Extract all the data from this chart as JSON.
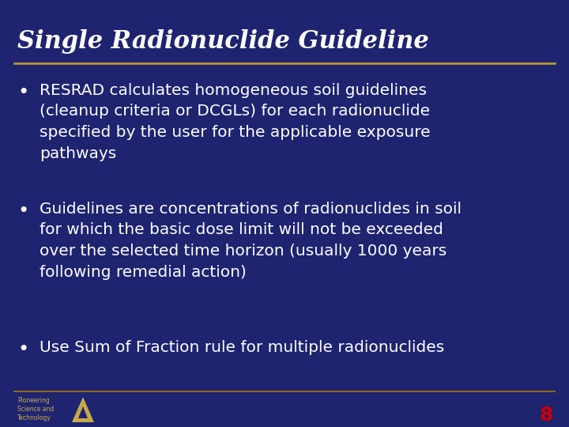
{
  "background_color": "#1e2470",
  "title": "Single Radionuclide Guideline",
  "title_color": "#ffffff",
  "title_font_size": 22,
  "separator_color": "#b8962e",
  "separator_color_bottom": "#8b6914",
  "bullet_color": "#ffffff",
  "bullet_font_size": 14.5,
  "bullets": [
    "RESRAD calculates homogeneous soil guidelines\n(cleanup criteria or DCGLs) for each radionuclide\nspecified by the user for the applicable exposure\npathways",
    "Guidelines are concentrations of radionuclides in soil\nfor which the basic dose limit will not be exceeded\nover the selected time horizon (usually 1000 years\nfollowing remedial action)",
    "Use Sum of Fraction rule for multiple radionuclides"
  ],
  "footer_text_small": "Pioneering\nScience and\nTechnology",
  "footer_text_small_color": "#c8a84b",
  "slide_number": "8",
  "slide_number_color": "#cc0000",
  "slide_number_font_size": 18,
  "logo_color": "#c8a84b"
}
